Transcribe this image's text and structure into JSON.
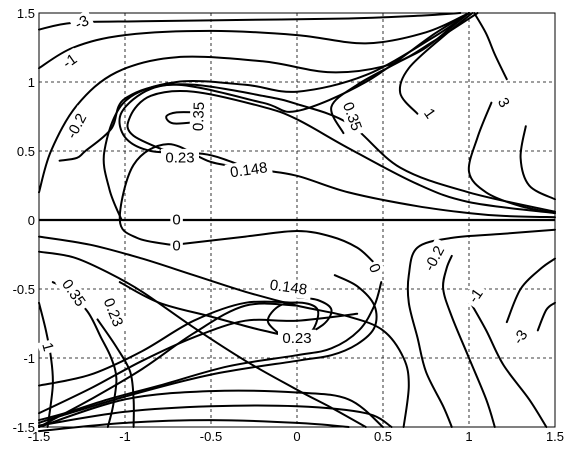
{
  "chart_data": {
    "type": "contour",
    "title": "",
    "xlabel": "",
    "ylabel": "",
    "xlim": [
      -1.5,
      1.5
    ],
    "ylim": [
      -1.5,
      1.5
    ],
    "grid": true,
    "x_ticks": [
      "-1.5",
      "-1",
      "-0.5",
      "0",
      "0.5",
      "1",
      "1.5"
    ],
    "y_ticks": [
      "1.5",
      "1",
      "0.5",
      "0",
      "-0.5",
      "-1",
      "-1.5"
    ],
    "levels": [
      -3,
      -1,
      -0.2,
      0,
      0.148,
      0.23,
      0.35,
      3
    ],
    "contour_labels": [
      {
        "text": "-3",
        "x": -1.25,
        "y": 1.43,
        "angle": -25
      },
      {
        "text": "-1",
        "x": -1.32,
        "y": 1.15,
        "angle": -35
      },
      {
        "text": "-0.2",
        "x": -1.28,
        "y": 0.68,
        "angle": -62
      },
      {
        "text": "0.35",
        "x": -0.57,
        "y": 0.75,
        "angle": -88
      },
      {
        "text": "0.23",
        "x": -0.68,
        "y": 0.45,
        "angle": 0
      },
      {
        "text": "0.148",
        "x": -0.28,
        "y": 0.36,
        "angle": -8
      },
      {
        "text": "0",
        "x": -0.7,
        "y": 0.0,
        "angle": 0
      },
      {
        "text": "0",
        "x": -0.7,
        "y": -0.19,
        "angle": 0
      },
      {
        "text": "0.35",
        "x": 0.32,
        "y": 0.75,
        "angle": 70
      },
      {
        "text": "1",
        "x": 0.77,
        "y": 0.77,
        "angle": 55
      },
      {
        "text": "3",
        "x": 1.2,
        "y": 0.85,
        "angle": 60
      },
      {
        "text": "0.148",
        "x": -0.05,
        "y": -0.49,
        "angle": 8
      },
      {
        "text": "0.23",
        "x": 0.0,
        "y": -0.86,
        "angle": 0
      },
      {
        "text": "0",
        "x": 0.45,
        "y": -0.35,
        "angle": 68
      },
      {
        "text": "-0.2",
        "x": 0.8,
        "y": -0.28,
        "angle": -62
      },
      {
        "text": "-1",
        "x": 1.04,
        "y": -0.55,
        "angle": -55
      },
      {
        "text": "-3",
        "x": 1.3,
        "y": -0.85,
        "angle": -55
      },
      {
        "text": "0.35",
        "x": -1.3,
        "y": -0.53,
        "angle": 55
      },
      {
        "text": "0.23",
        "x": -1.07,
        "y": -0.67,
        "angle": 68
      },
      {
        "text": "1",
        "x": -1.45,
        "y": -0.92,
        "angle": 75
      }
    ],
    "contour_lines": [
      [
        [
          -1.5,
          0.0
        ],
        [
          1.5,
          0.0
        ]
      ],
      [
        [
          -1.5,
          1.38
        ],
        [
          -1.3,
          1.43
        ],
        [
          -0.9,
          1.44
        ],
        [
          -0.3,
          1.45
        ],
        [
          0.3,
          1.46
        ],
        [
          0.7,
          1.48
        ],
        [
          0.95,
          1.5
        ]
      ],
      [
        [
          -1.5,
          1.1
        ],
        [
          -1.3,
          1.25
        ],
        [
          -1.0,
          1.34
        ],
        [
          -0.5,
          1.37
        ],
        [
          0.0,
          1.34
        ],
        [
          0.4,
          1.28
        ],
        [
          0.75,
          1.36
        ],
        [
          1.0,
          1.5
        ]
      ],
      [
        [
          -1.5,
          0.2
        ],
        [
          -1.43,
          0.5
        ],
        [
          -1.28,
          0.83
        ],
        [
          -1.05,
          1.07
        ],
        [
          -0.7,
          1.18
        ],
        [
          -0.2,
          1.15
        ],
        [
          0.2,
          1.07
        ],
        [
          0.55,
          1.13
        ],
        [
          0.8,
          1.3
        ],
        [
          1.05,
          1.5
        ]
      ],
      [
        [
          -1.02,
          0.0
        ],
        [
          -1.09,
          0.22
        ],
        [
          -1.12,
          0.5
        ],
        [
          -1.0,
          0.86
        ],
        [
          -0.7,
          1.0
        ],
        [
          -0.3,
          0.98
        ],
        [
          0.0,
          0.93
        ],
        [
          0.4,
          1.05
        ],
        [
          0.8,
          1.33
        ],
        [
          1.0,
          1.5
        ]
      ],
      [
        [
          -1.38,
          0.43
        ],
        [
          -1.28,
          0.45
        ],
        [
          -1.23,
          0.5
        ],
        [
          -1.08,
          0.66
        ],
        [
          -1.0,
          0.88
        ],
        [
          -0.7,
          0.98
        ],
        [
          -0.2,
          0.85
        ],
        [
          0.0,
          0.79
        ],
        [
          0.4,
          1.0
        ],
        [
          0.8,
          1.35
        ],
        [
          1.0,
          1.5
        ]
      ],
      [
        [
          -0.73,
          -0.18
        ],
        [
          -0.93,
          -0.13
        ],
        [
          -1.03,
          0.0
        ],
        [
          -0.95,
          0.4
        ],
        [
          -0.75,
          0.55
        ],
        [
          -0.5,
          0.42
        ],
        [
          -0.25,
          0.37
        ],
        [
          0.0,
          0.32
        ],
        [
          0.3,
          0.2
        ],
        [
          0.7,
          0.1
        ],
        [
          1.0,
          0.05
        ],
        [
          1.2,
          0.03
        ],
        [
          1.5,
          0.02
        ]
      ],
      [
        [
          -0.66,
          0.45
        ],
        [
          -0.95,
          0.61
        ],
        [
          -0.97,
          0.75
        ],
        [
          -0.85,
          0.9
        ],
        [
          -0.6,
          0.93
        ],
        [
          -0.2,
          0.82
        ],
        [
          0.0,
          0.73
        ],
        [
          0.3,
          0.52
        ],
        [
          0.7,
          0.26
        ],
        [
          1.0,
          0.13
        ],
        [
          1.5,
          0.05
        ]
      ],
      [
        [
          -0.28,
          0.37
        ],
        [
          -0.4,
          0.43
        ],
        [
          -0.55,
          0.48
        ],
        [
          -0.85,
          0.5
        ],
        [
          -1.0,
          0.6
        ],
        [
          -1.02,
          0.78
        ],
        [
          -0.85,
          0.95
        ],
        [
          -0.6,
          0.98
        ],
        [
          -0.2,
          0.9
        ],
        [
          0.0,
          0.84
        ],
        [
          0.3,
          0.7
        ],
        [
          0.6,
          0.38
        ],
        [
          1.0,
          0.2
        ],
        [
          1.5,
          0.06
        ]
      ],
      [
        [
          -0.58,
          0.71
        ],
        [
          -0.72,
          0.7
        ],
        [
          -0.76,
          0.75
        ],
        [
          -0.7,
          0.78
        ],
        [
          -0.58,
          0.78
        ]
      ],
      [
        [
          0.27,
          0.63
        ],
        [
          0.2,
          0.82
        ],
        [
          0.35,
          0.98
        ],
        [
          0.6,
          1.15
        ],
        [
          0.75,
          1.25
        ],
        [
          0.9,
          1.4
        ],
        [
          1.0,
          1.5
        ]
      ],
      [
        [
          0.7,
          0.77
        ],
        [
          0.6,
          0.92
        ],
        [
          0.65,
          1.1
        ],
        [
          0.85,
          1.33
        ],
        [
          1.02,
          1.5
        ]
      ],
      [
        [
          1.13,
          0.85
        ],
        [
          1.05,
          0.6
        ],
        [
          1.0,
          0.35
        ],
        [
          1.1,
          0.2
        ],
        [
          1.3,
          0.1
        ],
        [
          1.5,
          0.05
        ]
      ],
      [
        [
          1.22,
          1.02
        ],
        [
          1.15,
          1.2
        ],
        [
          1.1,
          1.35
        ],
        [
          1.03,
          1.5
        ]
      ],
      [
        [
          1.33,
          0.68
        ],
        [
          1.3,
          0.45
        ],
        [
          1.35,
          0.25
        ],
        [
          1.5,
          0.15
        ]
      ],
      [
        [
          -1.5,
          -0.12
        ],
        [
          -1.2,
          -0.18
        ],
        [
          -0.9,
          -0.28
        ],
        [
          -0.6,
          -0.4
        ],
        [
          -0.3,
          -0.52
        ],
        [
          0.0,
          -0.62
        ],
        [
          0.3,
          -0.7
        ],
        [
          0.5,
          -0.8
        ],
        [
          0.62,
          -1.0
        ],
        [
          0.65,
          -1.2
        ],
        [
          0.62,
          -1.5
        ]
      ],
      [
        [
          -1.5,
          -0.23
        ],
        [
          -1.3,
          -0.27
        ],
        [
          -1.1,
          -0.38
        ],
        [
          -0.9,
          -0.52
        ],
        [
          -0.6,
          -0.78
        ],
        [
          -0.3,
          -1.02
        ],
        [
          0.0,
          -1.23
        ],
        [
          0.2,
          -1.36
        ],
        [
          0.4,
          -1.5
        ]
      ],
      [
        [
          -0.71,
          -0.18
        ],
        [
          -0.3,
          -0.12
        ],
        [
          0.0,
          -0.08
        ],
        [
          0.2,
          -0.12
        ],
        [
          0.35,
          -0.2
        ],
        [
          0.44,
          -0.3
        ]
      ],
      [
        [
          0.49,
          -0.45
        ],
        [
          0.45,
          -0.62
        ],
        [
          0.36,
          -0.8
        ],
        [
          0.2,
          -0.93
        ],
        [
          0.0,
          -0.98
        ],
        [
          -0.4,
          -1.06
        ],
        [
          -0.8,
          -1.2
        ],
        [
          -1.1,
          -1.3
        ],
        [
          -1.35,
          -1.4
        ],
        [
          -1.5,
          -1.45
        ]
      ],
      [
        [
          -1.03,
          -0.45
        ],
        [
          -0.8,
          -0.6
        ],
        [
          -0.5,
          -0.7
        ],
        [
          -0.2,
          -0.8
        ],
        [
          0.0,
          -0.84
        ],
        [
          0.15,
          -0.76
        ],
        [
          0.2,
          -0.65
        ],
        [
          0.12,
          -0.58
        ],
        [
          0.0,
          -0.56
        ]
      ],
      [
        [
          -0.1,
          -0.83
        ],
        [
          -0.17,
          -0.73
        ],
        [
          -0.1,
          -0.62
        ],
        [
          0.03,
          -0.6
        ],
        [
          0.12,
          -0.65
        ],
        [
          0.1,
          -0.78
        ],
        [
          0.03,
          -0.86
        ],
        [
          -0.02,
          -0.86
        ]
      ],
      [
        [
          0.22,
          -0.4
        ],
        [
          0.35,
          -0.48
        ],
        [
          0.45,
          -0.62
        ],
        [
          0.45,
          -0.78
        ],
        [
          0.35,
          -0.9
        ],
        [
          0.2,
          -0.98
        ],
        [
          0.0,
          -1.02
        ],
        [
          -0.5,
          -1.12
        ],
        [
          -1.0,
          -1.28
        ],
        [
          -1.4,
          -1.43
        ],
        [
          -1.5,
          -1.47
        ]
      ],
      [
        [
          1.5,
          -0.07
        ],
        [
          1.2,
          -0.1
        ],
        [
          0.9,
          -0.13
        ],
        [
          0.7,
          -0.2
        ],
        [
          0.65,
          -0.4
        ],
        [
          0.65,
          -0.6
        ],
        [
          0.7,
          -0.85
        ],
        [
          0.75,
          -1.1
        ],
        [
          0.85,
          -1.35
        ],
        [
          0.9,
          -1.5
        ]
      ],
      [
        [
          0.9,
          -0.26
        ],
        [
          0.87,
          -0.35
        ],
        [
          0.85,
          -0.5
        ],
        [
          0.9,
          -0.7
        ],
        [
          1.0,
          -1.0
        ],
        [
          1.1,
          -1.3
        ],
        [
          1.15,
          -1.5
        ]
      ],
      [
        [
          1.0,
          -0.58
        ],
        [
          1.1,
          -0.8
        ],
        [
          1.2,
          -1.05
        ],
        [
          1.35,
          -1.3
        ],
        [
          1.45,
          -1.5
        ]
      ],
      [
        [
          1.22,
          -0.74
        ],
        [
          1.3,
          -0.5
        ],
        [
          1.42,
          -0.35
        ],
        [
          1.5,
          -0.28
        ]
      ],
      [
        [
          1.4,
          -0.8
        ],
        [
          1.45,
          -0.65
        ],
        [
          1.5,
          -0.6
        ]
      ],
      [
        [
          -1.5,
          -0.6
        ],
        [
          -1.46,
          -0.8
        ],
        [
          -1.43,
          -1.0
        ],
        [
          -1.42,
          -1.2
        ],
        [
          -1.45,
          -1.5
        ]
      ],
      [
        [
          -1.42,
          -0.45
        ],
        [
          -1.35,
          -0.5
        ],
        [
          -1.22,
          -0.66
        ],
        [
          -1.14,
          -0.85
        ],
        [
          -1.08,
          -1.0
        ],
        [
          -1.05,
          -1.15
        ],
        [
          -1.07,
          -1.35
        ],
        [
          -1.1,
          -1.5
        ]
      ],
      [
        [
          -1.16,
          -0.72
        ],
        [
          -1.05,
          -0.92
        ],
        [
          -0.97,
          -1.1
        ],
        [
          -0.95,
          -1.3
        ],
        [
          -0.95,
          -1.5
        ]
      ],
      [
        [
          -1.5,
          -1.4
        ],
        [
          -1.2,
          -1.22
        ],
        [
          -0.9,
          -1.02
        ],
        [
          -0.6,
          -0.85
        ],
        [
          -0.3,
          -0.73
        ],
        [
          0.0,
          -0.73
        ],
        [
          0.35,
          -0.68
        ]
      ],
      [
        [
          -1.5,
          -1.5
        ],
        [
          -1.2,
          -1.3
        ],
        [
          -0.9,
          -1.08
        ],
        [
          -0.6,
          -0.82
        ],
        [
          -0.3,
          -0.62
        ],
        [
          0.0,
          -0.62
        ]
      ],
      [
        [
          -1.5,
          -1.2
        ],
        [
          -1.2,
          -1.12
        ],
        [
          -0.9,
          -0.95
        ],
        [
          -0.6,
          -0.73
        ],
        [
          -0.3,
          -0.6
        ],
        [
          0.0,
          -0.6
        ]
      ],
      [
        [
          -1.5,
          -1.53
        ],
        [
          -1.0,
          -1.47
        ],
        [
          -0.5,
          -1.45
        ],
        [
          0.0,
          -1.47
        ],
        [
          0.3,
          -1.5
        ]
      ],
      [
        [
          -1.5,
          -1.49
        ],
        [
          -1.0,
          -1.39
        ],
        [
          -0.5,
          -1.35
        ],
        [
          0.0,
          -1.35
        ],
        [
          0.4,
          -1.4
        ],
        [
          0.55,
          -1.5
        ]
      ],
      [
        [
          -1.5,
          -1.5
        ],
        [
          -1.0,
          -1.3
        ],
        [
          -0.5,
          -1.24
        ],
        [
          0.0,
          -1.25
        ],
        [
          0.3,
          -1.3
        ],
        [
          0.5,
          -1.5
        ]
      ]
    ]
  }
}
